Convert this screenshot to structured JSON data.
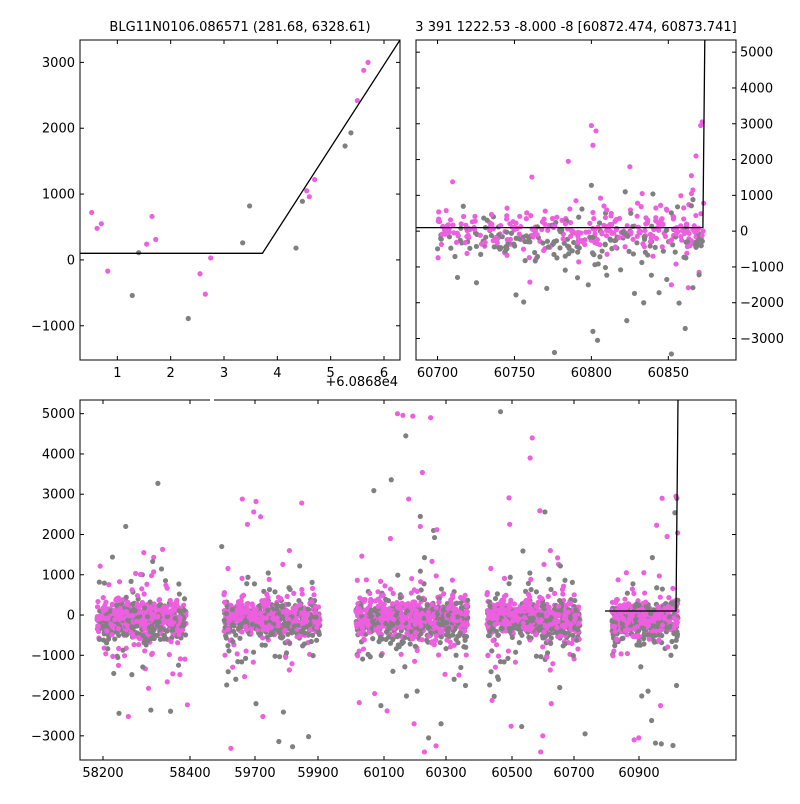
{
  "colors": {
    "primary": "#ee5ee0",
    "secondary": "#808080",
    "model": "#000000",
    "frame": "#000000"
  },
  "chart_data": [
    {
      "id": "zoom",
      "type": "scatter",
      "title": "BLG11N0106.086571 (281.68, 6328.61)",
      "x_offset_label": "+6.0868e4",
      "xlim": [
        0.3,
        6.3
      ],
      "ylim": [
        -1520,
        3340
      ],
      "x_ticks": [
        1,
        2,
        3,
        4,
        5,
        6
      ],
      "y_ticks": [
        -1000,
        0,
        1000,
        2000,
        3000
      ],
      "y_axis_side": "left",
      "series": [
        {
          "color_key": "primary",
          "points": [
            [
              0.52,
              720
            ],
            [
              0.62,
              480
            ],
            [
              0.7,
              550
            ],
            [
              0.82,
              -170
            ],
            [
              1.55,
              240
            ],
            [
              1.65,
              660
            ],
            [
              1.72,
              310
            ],
            [
              2.55,
              -210
            ],
            [
              2.65,
              -520
            ],
            [
              2.75,
              30
            ],
            [
              4.55,
              1050
            ],
            [
              4.6,
              960
            ],
            [
              4.7,
              1220
            ],
            [
              5.5,
              2420
            ],
            [
              5.62,
              2880
            ],
            [
              5.7,
              3000
            ]
          ]
        },
        {
          "color_key": "secondary",
          "points": [
            [
              1.28,
              -540
            ],
            [
              1.4,
              110
            ],
            [
              2.33,
              -890
            ],
            [
              3.35,
              260
            ],
            [
              3.48,
              820
            ],
            [
              4.35,
              180
            ],
            [
              4.47,
              890
            ],
            [
              5.27,
              1730
            ],
            [
              5.38,
              1930
            ]
          ]
        }
      ],
      "model": {
        "color_key": "model",
        "points": [
          [
            0.3,
            100
          ],
          [
            3.72,
            100
          ],
          [
            6.3,
            3340
          ]
        ]
      }
    },
    {
      "id": "season",
      "type": "scatter",
      "title": "3 391 1222.53 -8.000 -8 [60872.474, 60873.741]",
      "xlim": [
        60686,
        60894
      ],
      "ylim": [
        -3600,
        5340
      ],
      "x_ticks": [
        60700,
        60750,
        60800,
        60850
      ],
      "y_ticks": [
        -3000,
        -2000,
        -1000,
        0,
        1000,
        2000,
        3000,
        4000,
        5000
      ],
      "y_axis_side": "right",
      "series": [
        {
          "color_key": "primary",
          "points": [
            [
              60800,
              2950
            ],
            [
              60803,
              2800
            ],
            [
              60785,
              1950
            ],
            [
              60825,
              1800
            ],
            [
              60801,
              2400
            ],
            [
              60871,
              2950
            ],
            [
              60872,
              3050
            ],
            [
              60868,
              2100
            ],
            [
              60865,
              1550
            ],
            [
              60866,
              1150
            ],
            [
              60865,
              1050
            ],
            [
              60790,
              850
            ],
            [
              60830,
              780
            ],
            [
              60845,
              720
            ],
            [
              60770,
              560
            ],
            [
              60860,
              650
            ],
            [
              60801,
              520
            ],
            [
              60833,
              1050
            ],
            [
              60810,
              590
            ],
            [
              60745,
              430
            ],
            [
              60758,
              510
            ],
            [
              60786,
              620
            ],
            [
              60705,
              -80
            ],
            [
              60718,
              -320
            ],
            [
              60738,
              -190
            ],
            [
              60769,
              -540
            ],
            [
              60791,
              -310
            ],
            [
              60818,
              -180
            ],
            [
              60840,
              -700
            ],
            [
              60852,
              -1500
            ],
            [
              60855,
              -920
            ],
            [
              60863,
              -1580
            ],
            [
              60870,
              -1150
            ],
            [
              60872,
              -120
            ],
            [
              60873,
              780
            ]
          ]
        },
        {
          "color_key": "secondary",
          "points": [
            [
              60735,
              -120
            ],
            [
              60744,
              -560
            ],
            [
              60751,
              -1780
            ],
            [
              60756,
              -1980
            ],
            [
              60765,
              -710
            ],
            [
              60771,
              -1600
            ],
            [
              60776,
              -3390
            ],
            [
              60783,
              -1090
            ],
            [
              60791,
              -1300
            ],
            [
              60798,
              -1500
            ],
            [
              60801,
              -2800
            ],
            [
              60804,
              -3050
            ],
            [
              60810,
              -1230
            ],
            [
              60819,
              -1080
            ],
            [
              60823,
              -2500
            ],
            [
              60828,
              -1740
            ],
            [
              60834,
              -2000
            ],
            [
              60839,
              -1230
            ],
            [
              60844,
              -1720
            ],
            [
              60849,
              -1350
            ],
            [
              60852,
              -3430
            ],
            [
              60857,
              -2010
            ],
            [
              60861,
              -2720
            ],
            [
              60866,
              -1580
            ],
            [
              60870,
              -1220
            ],
            [
              60800,
              1280
            ],
            [
              60822,
              1100
            ],
            [
              60840,
              1040
            ],
            [
              60856,
              680
            ],
            [
              60866,
              880
            ],
            [
              60809,
              -380
            ],
            [
              60783,
              -700
            ],
            [
              60760,
              -300
            ],
            [
              60745,
              -420
            ],
            [
              60868,
              -450
            ]
          ]
        }
      ],
      "model": {
        "color_key": "model",
        "points": [
          [
            60686,
            100
          ],
          [
            60872.47,
            100
          ],
          [
            60873.74,
            5340
          ]
        ]
      }
    },
    {
      "id": "full",
      "type": "scatter",
      "title": "",
      "xlim": [
        58130,
        61050
      ],
      "ylim": [
        -3600,
        5340
      ],
      "x_ticks_labels": [
        "58200",
        "58400",
        "59700",
        "59900",
        "60100",
        "60300",
        "60500",
        "60700",
        "60900"
      ],
      "y_ticks": [
        -3000,
        -2000,
        -1000,
        0,
        1000,
        2000,
        3000,
        4000,
        5000
      ],
      "y_axis_side": "left",
      "seasons": [
        {
          "center": 58290,
          "halfwidth": 95,
          "lo": -2500,
          "hi": 3270,
          "out_primary": [
            [
              58335,
              1630
            ],
            [
              58295,
              1550
            ],
            [
              58262,
              -2520
            ],
            [
              58388,
              -2230
            ],
            [
              58345,
              -1660
            ],
            [
              58305,
              -1820
            ]
          ],
          "out_secondary": [
            [
              58325,
              3270
            ],
            [
              58242,
              -2440
            ],
            [
              58352,
              -2390
            ],
            [
              58228,
              1440
            ],
            [
              58310,
              -2360
            ]
          ]
        },
        {
          "center": 59780,
          "halfwidth": 105,
          "lo": -3300,
          "hi": 2900,
          "out_primary": [
            [
              59715,
              2880
            ],
            [
              59745,
              2820
            ],
            [
              59755,
              2440
            ],
            [
              59740,
              2560
            ],
            [
              59690,
              -3310
            ],
            [
              59720,
              -1530
            ],
            [
              59760,
              -2520
            ],
            [
              59845,
              2780
            ]
          ],
          "out_secondary": [
            [
              59795,
              -3140
            ],
            [
              59825,
              -3270
            ],
            [
              59805,
              -2410
            ],
            [
              59670,
              1700
            ],
            [
              59745,
              -2200
            ],
            [
              59860,
              -3020
            ]
          ]
        },
        {
          "center": 60170,
          "halfwidth": 135,
          "lo": -3400,
          "hi": 5000,
          "out_primary": [
            [
              60135,
              5000
            ],
            [
              60148,
              4960
            ],
            [
              60172,
              4940
            ],
            [
              60215,
              4900
            ],
            [
              60195,
              3540
            ],
            [
              60230,
              2120
            ],
            [
              60162,
              2880
            ],
            [
              60118,
              1900
            ],
            [
              60190,
              2200
            ],
            [
              60228,
              -3250
            ],
            [
              60175,
              -2700
            ],
            [
              60200,
              -3400
            ],
            [
              60080,
              -1950
            ],
            [
              60110,
              -2380
            ]
          ],
          "out_secondary": [
            [
              60155,
              4450
            ],
            [
              60078,
              3090
            ],
            [
              60120,
              3360
            ],
            [
              60190,
              2450
            ],
            [
              60222,
              2100
            ],
            [
              60240,
              -2700
            ],
            [
              60210,
              -3050
            ],
            [
              60095,
              -2250
            ]
          ]
        },
        {
          "center": 60518,
          "halfwidth": 110,
          "lo": -3400,
          "hi": 4400,
          "out_primary": [
            [
              60515,
              4400
            ],
            [
              60510,
              3900
            ],
            [
              60460,
              2910
            ],
            [
              60533,
              2590
            ],
            [
              60575,
              1420
            ],
            [
              60420,
              -2120
            ],
            [
              60465,
              -2760
            ],
            [
              60540,
              -3000
            ],
            [
              60535,
              -3400
            ],
            [
              60560,
              -2200
            ]
          ],
          "out_secondary": [
            [
              60440,
              5050
            ],
            [
              60493,
              1590
            ],
            [
              60545,
              2560
            ],
            [
              60425,
              -2020
            ],
            [
              60490,
              -2770
            ],
            [
              60580,
              -1800
            ],
            [
              60640,
              -2950
            ]
          ]
        },
        {
          "center": 60788,
          "halfwidth": 85,
          "lo": -3200,
          "hi": 3000,
          "out_primary": [
            [
              60832,
              2900
            ],
            [
              60868,
              2950
            ],
            [
              60872,
              2040
            ],
            [
              60845,
              1950
            ],
            [
              60818,
              2230
            ],
            [
              60740,
              1050
            ],
            [
              60785,
              1050
            ],
            [
              60828,
              -2250
            ],
            [
              60772,
              -3050
            ],
            [
              60760,
              -3100
            ]
          ],
          "out_secondary": [
            [
              60865,
              2540
            ],
            [
              60870,
              2900
            ],
            [
              60805,
              -2620
            ],
            [
              60815,
              -3180
            ],
            [
              60860,
              -3240
            ],
            [
              60830,
              -3200
            ]
          ]
        }
      ],
      "model": {
        "color_key": "model",
        "points": [
          [
            60700,
            100
          ],
          [
            60872.47,
            100
          ],
          [
            60873.74,
            5340
          ]
        ]
      }
    }
  ]
}
